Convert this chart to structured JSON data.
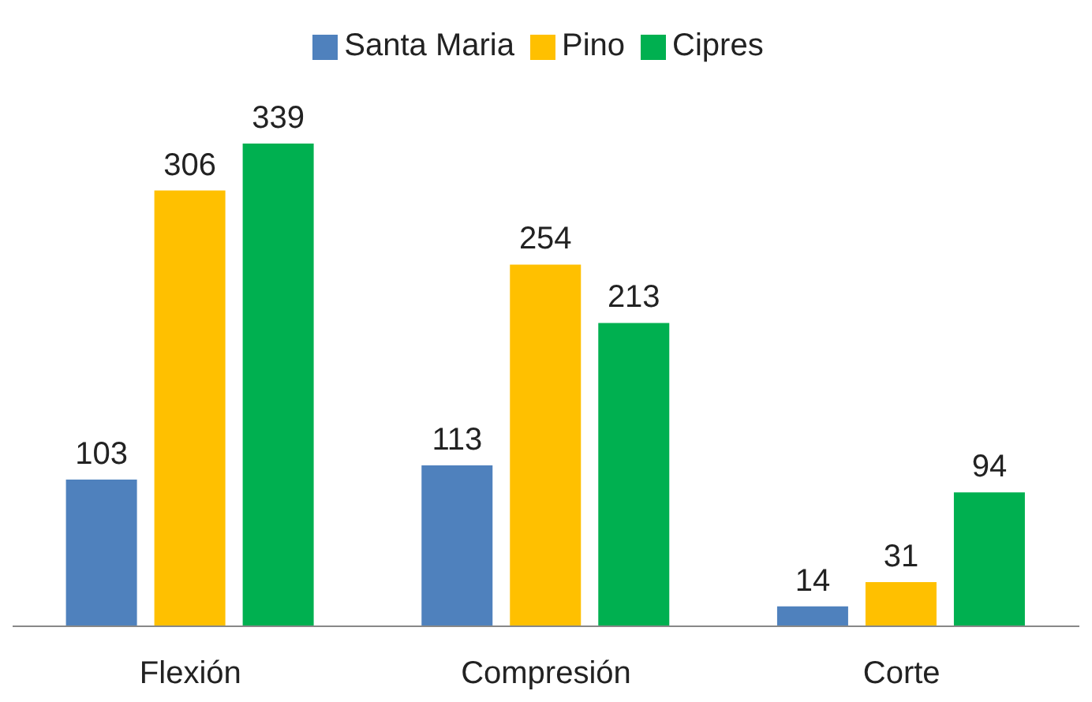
{
  "chart_data": {
    "type": "bar",
    "categories": [
      "Flexión",
      "Compresión",
      "Corte"
    ],
    "series": [
      {
        "name": "Santa Maria",
        "color": "#4f81bd",
        "values": [
          103,
          113,
          14
        ]
      },
      {
        "name": "Pino",
        "color": "#ffc000",
        "values": [
          306,
          254,
          31
        ]
      },
      {
        "name": "Cipres",
        "color": "#00b050",
        "values": [
          339,
          213,
          94
        ]
      }
    ],
    "data_labels": true,
    "legend": "top",
    "grid": false
  }
}
